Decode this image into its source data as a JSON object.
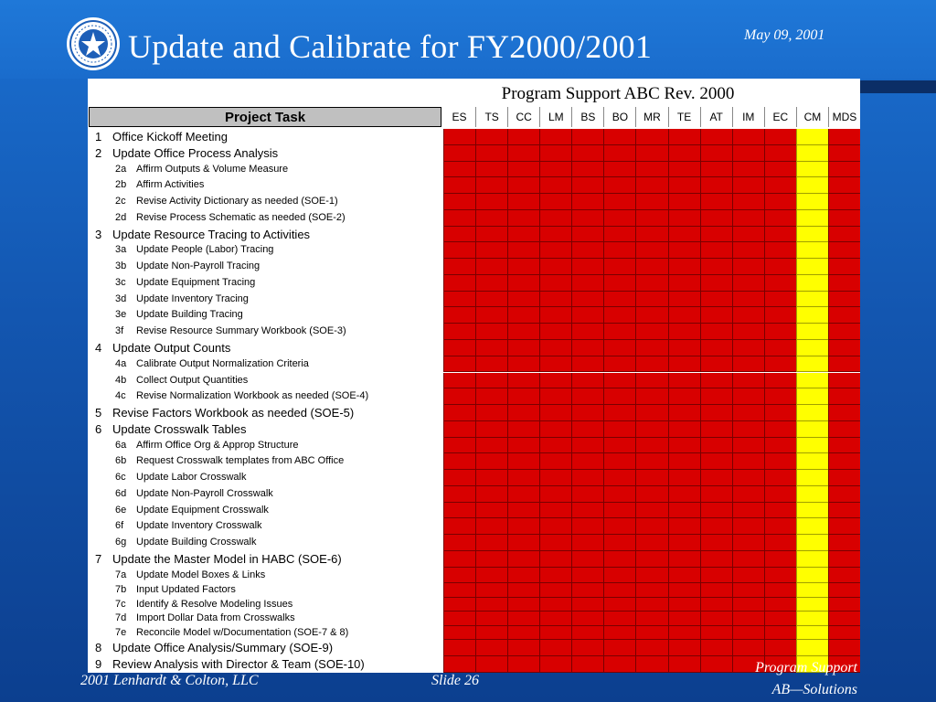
{
  "slide": {
    "title": "Update and Calibrate for FY2000/2001",
    "date": "May 09, 2001",
    "footer_left": "2001 Lenhardt & Colton, LLC",
    "footer_center": "Slide 26",
    "footer_right_top": "Program Support",
    "footer_right_bottom": "AB—Solutions"
  },
  "table": {
    "caption": "Program Support ABC Rev. 2000",
    "task_header": "Project Task",
    "columns": [
      "ES",
      "TS",
      "CC",
      "LM",
      "BS",
      "BO",
      "MR",
      "TE",
      "AT",
      "IM",
      "EC",
      "CM",
      "MDS"
    ],
    "highlight_color_default": "#d80000",
    "highlight_color_cm": "#ffff00",
    "tasks": [
      {
        "num": "1",
        "label": "Office Kickoff Meeting",
        "level": 1
      },
      {
        "num": "2",
        "label": "Update Office Process Analysis",
        "level": 1
      },
      {
        "num": "2a",
        "label": "Affirm Outputs & Volume Measure",
        "level": 2
      },
      {
        "num": "2b",
        "label": "Affirm Activities",
        "level": 2
      },
      {
        "num": "2c",
        "label": "Revise Activity Dictionary as needed (SOE-1)",
        "level": 2
      },
      {
        "num": "2d",
        "label": "Revise Process Schematic as needed (SOE-2)",
        "level": 2
      },
      {
        "num": "3",
        "label": "Update Resource Tracing to Activities",
        "level": 1
      },
      {
        "num": "3a",
        "label": "Update People (Labor) Tracing",
        "level": 2
      },
      {
        "num": "3b",
        "label": "Update Non-Payroll Tracing",
        "level": 2
      },
      {
        "num": "3c",
        "label": "Update Equipment Tracing",
        "level": 2
      },
      {
        "num": "3d",
        "label": "Update Inventory Tracing",
        "level": 2
      },
      {
        "num": "3e",
        "label": "Update Building Tracing",
        "level": 2
      },
      {
        "num": "3f",
        "label": "Revise Resource Summary Workbook (SOE-3)",
        "level": 2
      },
      {
        "num": "4",
        "label": "Update Output Counts",
        "level": 1
      },
      {
        "num": "4a",
        "label": "Calibrate Output Normalization Criteria",
        "level": 2
      },
      {
        "num": "4b",
        "label": "Collect Output Quantities",
        "level": 2
      },
      {
        "num": "4c",
        "label": "Revise Normalization Workbook as needed (SOE-4)",
        "level": 2
      },
      {
        "num": "5",
        "label": "Revise Factors Workbook as needed (SOE-5)",
        "level": 1
      },
      {
        "num": "6",
        "label": "Update Crosswalk Tables",
        "level": 1
      },
      {
        "num": "6a",
        "label": "Affirm Office Org & Approp Structure",
        "level": 2
      },
      {
        "num": "6b",
        "label": "Request Crosswalk templates from ABC Office",
        "level": 2
      },
      {
        "num": "6c",
        "label": "Update Labor Crosswalk",
        "level": 2
      },
      {
        "num": "6d",
        "label": "Update Non-Payroll Crosswalk",
        "level": 2
      },
      {
        "num": "6e",
        "label": "Update Equipment Crosswalk",
        "level": 2
      },
      {
        "num": "6f",
        "label": "Update Inventory Crosswalk",
        "level": 2
      },
      {
        "num": "6g",
        "label": "Update Building Crosswalk",
        "level": 2
      },
      {
        "num": "7",
        "label": "Update the Master Model in HABC (SOE-6)",
        "level": 1
      },
      {
        "num": "7a",
        "label": "Update Model Boxes & Links",
        "level": 2
      },
      {
        "num": "7b",
        "label": "Input Updated Factors",
        "level": 2
      },
      {
        "num": "7c",
        "label": "Identify & Resolve Modeling Issues",
        "level": 2
      },
      {
        "num": "7d",
        "label": "Import Dollar Data from Crosswalks",
        "level": 2
      },
      {
        "num": "7e",
        "label": "Reconcile Model w/Documentation (SOE-7 & 8)",
        "level": 2
      },
      {
        "num": "8",
        "label": "Update Office Analysis/Summary (SOE-9)",
        "level": 1
      },
      {
        "num": "9",
        "label": "Review Analysis with Director & Team (SOE-10)",
        "level": 1
      }
    ]
  }
}
